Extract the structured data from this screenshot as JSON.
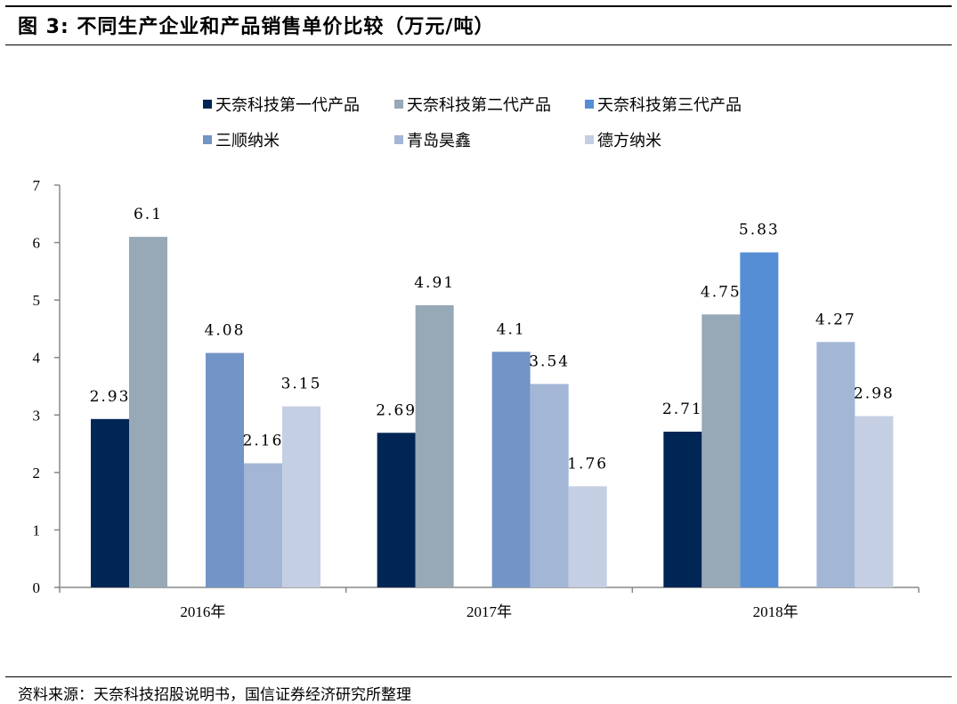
{
  "title": "图 3:  不同生产企业和产品销售单价比较（万元/吨）",
  "source": "资料来源：天奈科技招股说明书，国信证券经济研究所整理",
  "chart_data": {
    "type": "bar",
    "title": "不同生产企业和产品销售单价比较（万元/吨）",
    "xlabel": "",
    "ylabel": "",
    "categories": [
      "2016年",
      "2017年",
      "2018年"
    ],
    "ylim": [
      0,
      7
    ],
    "yticks": [
      0,
      1,
      2,
      3,
      4,
      5,
      6,
      7
    ],
    "grid": false,
    "legend_position": "top",
    "series": [
      {
        "name": "天奈科技第一代产品",
        "color": "#002655",
        "values": [
          2.93,
          2.69,
          2.71
        ],
        "labels": [
          "2.93",
          "2.69",
          "2.71"
        ]
      },
      {
        "name": "天奈科技第二代产品",
        "color": "#97a8b7",
        "values": [
          6.1,
          4.91,
          4.75
        ],
        "labels": [
          "6.1",
          "4.91",
          "4.75"
        ]
      },
      {
        "name": "天奈科技第三代产品",
        "color": "#558ed5",
        "values": [
          null,
          null,
          5.83
        ],
        "labels": [
          "",
          "",
          "5.83"
        ]
      },
      {
        "name": "三顺纳米",
        "color": "#7394c6",
        "values": [
          4.08,
          4.1,
          null
        ],
        "labels": [
          "4.08",
          "4.1",
          ""
        ]
      },
      {
        "name": "青岛昊鑫",
        "color": "#a3b6d6",
        "values": [
          2.16,
          3.54,
          4.27
        ],
        "labels": [
          "2.16",
          "3.54",
          "4.27"
        ]
      },
      {
        "name": "德方纳米",
        "color": "#c4cfe3",
        "values": [
          3.15,
          1.76,
          2.98
        ],
        "labels": [
          "3.15",
          "1.76",
          "2.98"
        ]
      }
    ]
  }
}
